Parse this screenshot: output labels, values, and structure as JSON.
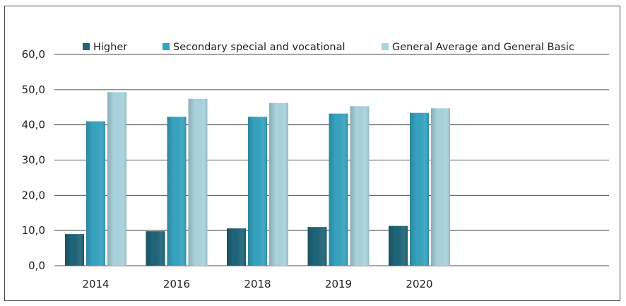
{
  "chart_data": {
    "type": "bar",
    "categories": [
      "2014",
      "2016",
      "2018",
      "2019",
      "2020"
    ],
    "series": [
      {
        "name": "Higher",
        "color": "#1f6478",
        "values": [
          9.0,
          9.8,
          10.6,
          11.0,
          11.3
        ]
      },
      {
        "name": "Secondary special and vocational",
        "color": "#36a3c0",
        "values": [
          41.0,
          42.3,
          42.3,
          43.2,
          43.4
        ]
      },
      {
        "name": "General Average and General Basic",
        "color": "#a9d3de",
        "values": [
          49.3,
          47.4,
          46.2,
          45.3,
          44.7
        ]
      }
    ],
    "y_ticks": [
      "0,0",
      "10,0",
      "20,0",
      "30,0",
      "40,0",
      "50,0",
      "60,0"
    ],
    "ylim": [
      0,
      60
    ],
    "grid": true,
    "legend_position": "top"
  }
}
